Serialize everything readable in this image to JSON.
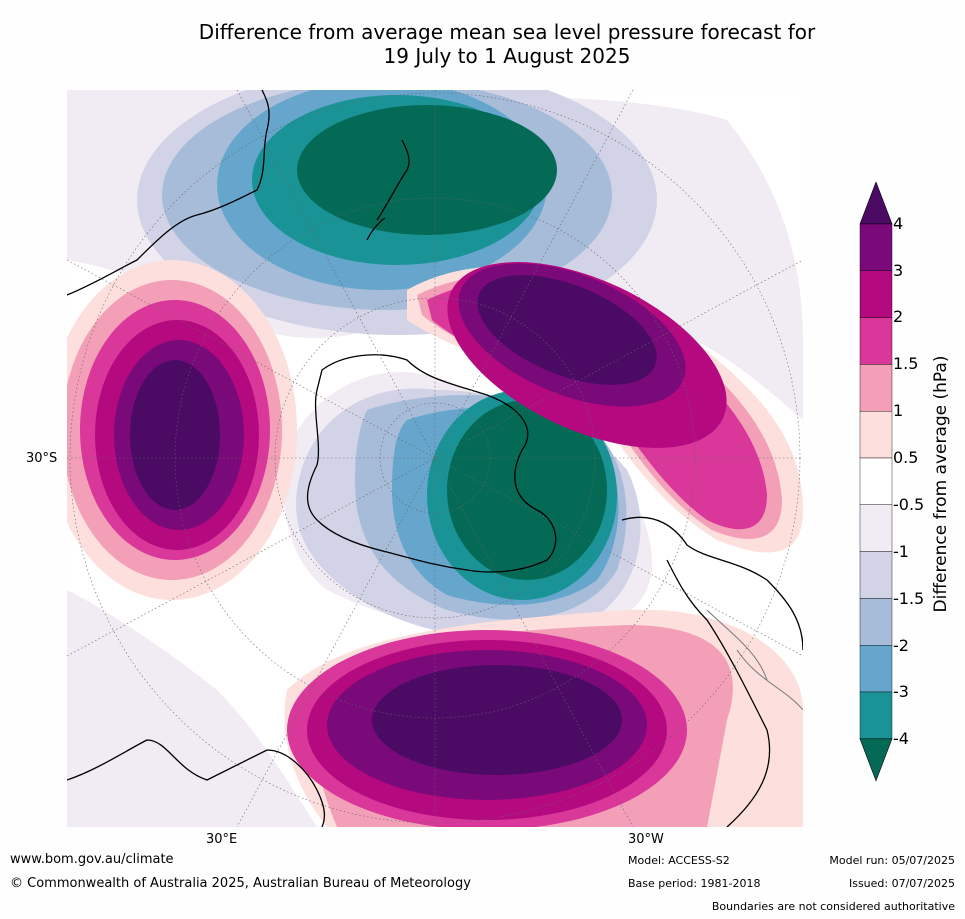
{
  "title_line1": "Difference from average mean sea level pressure forecast for",
  "title_line2": "19 July to 1 August 2025",
  "axis_labels": {
    "lat_30s": "30°S",
    "lon_30e": "30°E",
    "lon_30w": "30°W"
  },
  "colorbar": {
    "title": "Difference from average (hPa)",
    "tick_labels": [
      "4",
      "3",
      "2",
      "1.5",
      "1",
      "0.5",
      "-0.5",
      "-1",
      "-1.5",
      "-2",
      "-3",
      "-4"
    ],
    "colors_top_to_bottom": [
      "#4b0a64",
      "#7a0a7a",
      "#b5097f",
      "#d9379a",
      "#f29fb7",
      "#fde0dd",
      "#ffffff",
      "#f1ecf4",
      "#d2d3e6",
      "#a7bcd9",
      "#66a6cc",
      "#1a9397",
      "#046a56"
    ]
  },
  "footer": {
    "url": "www.bom.gov.au/climate",
    "copyright": "© Commonwealth of Australia 2025, Australian Bureau of Meteorology",
    "model": "Model: ACCESS-S2",
    "base_period": "Base period: 1981-2018",
    "model_run": "Model run: 05/07/2025",
    "issued": "Issued: 07/07/2025",
    "disclaimer": "Boundaries are not considered authoritative"
  }
}
